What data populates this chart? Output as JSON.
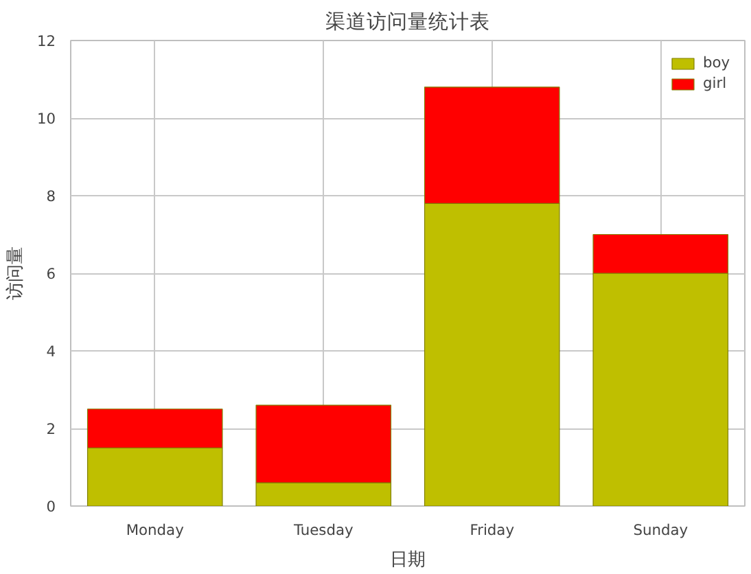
{
  "chart_data": {
    "type": "bar",
    "title": "渠道访问量统计表",
    "xlabel": "日期",
    "ylabel": "访问量",
    "categories": [
      "Monday",
      "Tuesday",
      "Friday",
      "Sunday"
    ],
    "series": [
      {
        "name": "boy",
        "color": "#bfbf00",
        "values": [
          1.5,
          0.6,
          7.8,
          6.0
        ]
      },
      {
        "name": "girl",
        "color": "#ff0000",
        "values": [
          1.0,
          2.0,
          3.0,
          1.0
        ]
      }
    ],
    "stacked": true,
    "ylim": [
      0,
      12
    ],
    "yticks": [
      0,
      2,
      4,
      6,
      8,
      10,
      12
    ],
    "grid": true,
    "legend": "top right"
  }
}
